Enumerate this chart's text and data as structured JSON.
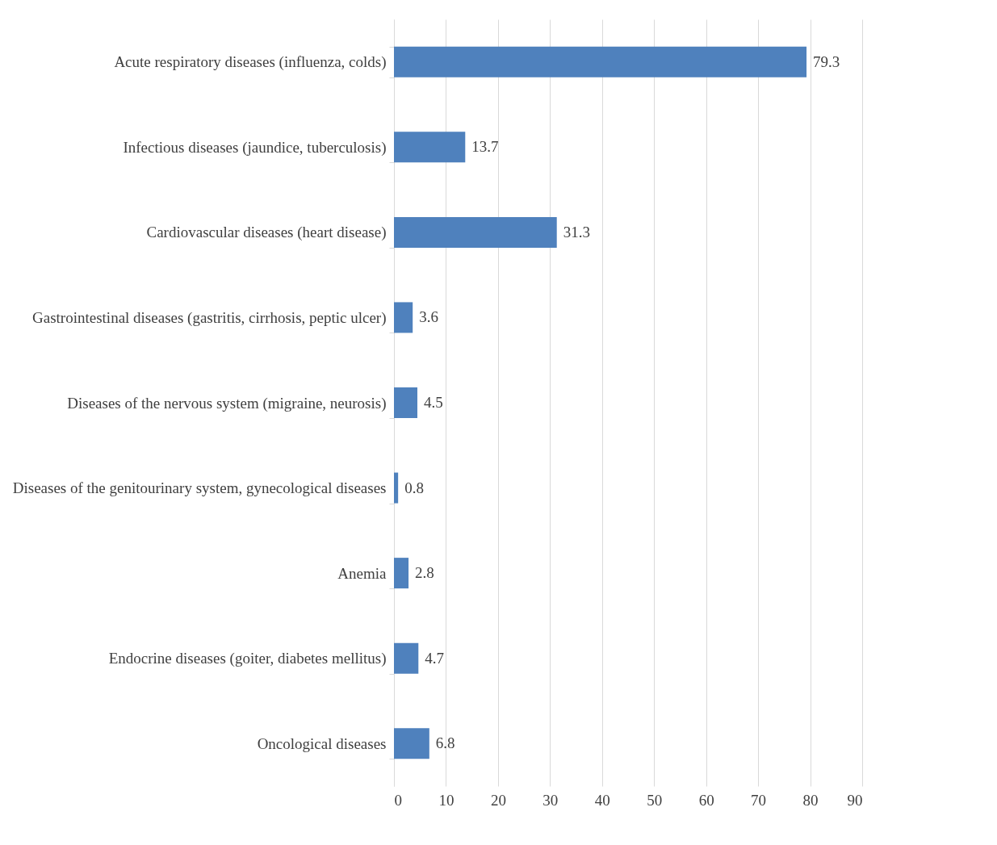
{
  "chart_data": {
    "type": "bar",
    "orientation": "horizontal",
    "categories": [
      "Acute respiratory diseases (influenza, colds)",
      "Infectious diseases (jaundice, tuberculosis)",
      "Cardiovascular diseases (heart disease)",
      "Gastrointestinal diseases (gastritis, cirrhosis, peptic ulcer)",
      "Diseases of the nervous system (migraine, neurosis)",
      "Diseases of the genitourinary system, gynecological diseases",
      "Anemia",
      "Endocrine diseases (goiter, diabetes mellitus)",
      "Oncological diseases"
    ],
    "values": [
      79.3,
      13.7,
      31.3,
      3.6,
      4.5,
      0.8,
      2.8,
      4.7,
      6.8
    ],
    "color": "#4f81bd",
    "xlim": [
      0,
      90
    ],
    "xticks": [
      0,
      10,
      20,
      30,
      40,
      50,
      60,
      70,
      80,
      90
    ],
    "grid": "x",
    "data_labels": true
  }
}
